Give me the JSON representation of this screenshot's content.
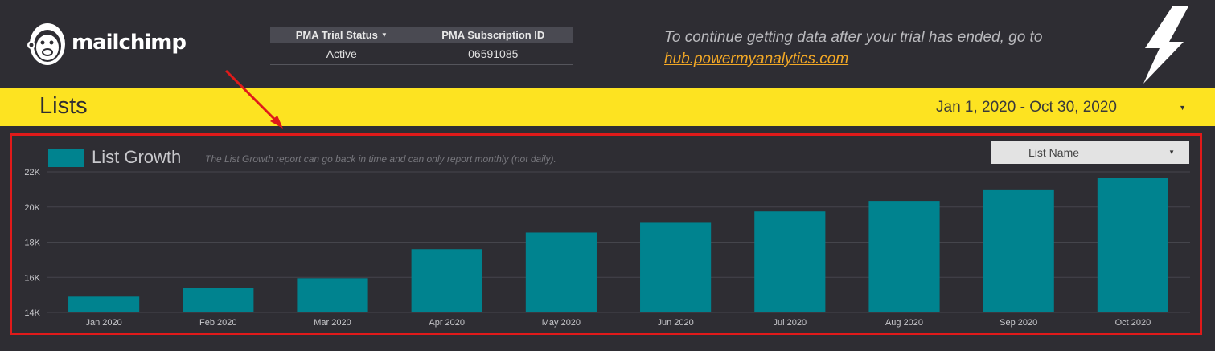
{
  "header": {
    "logo_text": "mailchimp",
    "pma_table": {
      "headers": [
        "PMA Trial Status",
        "PMA Subscription ID"
      ],
      "row": [
        "Active",
        "06591085"
      ]
    },
    "trial_note_text": "To continue getting data after your trial has ended, go to",
    "trial_link_text": "hub.powermyanalytics.com"
  },
  "lists_band": {
    "title": "Lists",
    "date_range": "Jan 1, 2020 - Oct 30, 2020"
  },
  "chart_panel": {
    "title": "List Growth",
    "subtitle": "The List Growth report can go back in time and can only report monthly (not daily).",
    "filter_label": "List Name"
  },
  "colors": {
    "background": "#2e2d33",
    "accent_yellow": "#fde321",
    "bar_color": "#00838f",
    "link_orange": "#f2a826",
    "highlight_border": "#e01a1a"
  },
  "chart_data": {
    "type": "bar",
    "title": "List Growth",
    "categories": [
      "Jan 2020",
      "Feb 2020",
      "Mar 2020",
      "Apr 2020",
      "May 2020",
      "Jun 2020",
      "Jul 2020",
      "Aug 2020",
      "Sep 2020",
      "Oct 2020"
    ],
    "series": [
      {
        "name": "List Growth",
        "values": [
          14900,
          15400,
          15950,
          17600,
          18550,
          19100,
          19750,
          20350,
          21000,
          21650
        ]
      }
    ],
    "yticks": [
      "14K",
      "16K",
      "18K",
      "20K",
      "22K"
    ],
    "ylim": [
      14000,
      22000
    ],
    "grid": true,
    "legend": "top-left"
  }
}
